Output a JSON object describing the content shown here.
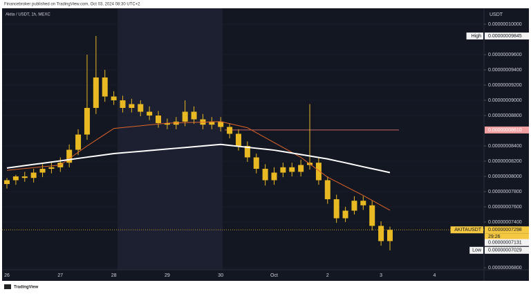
{
  "header": "Financebroker published on TradingView.com, Oct 03, 2024 08:30 UTC+2",
  "footer": "TradingView",
  "chart_data": {
    "type": "candlestick",
    "title": "Akita / USDT, 1h, MEXC",
    "y_axis_label": "USDT",
    "candle_color": "#e8b923",
    "categories": [
      "26",
      null,
      null,
      null,
      null,
      null,
      "27",
      null,
      null,
      null,
      null,
      null,
      "28",
      null,
      null,
      null,
      null,
      null,
      "29",
      null,
      null,
      null,
      null,
      null,
      "30",
      null,
      null,
      null,
      null,
      null,
      "Oct",
      null,
      null,
      null,
      null,
      null,
      "2",
      null,
      null,
      null,
      null,
      null,
      "3",
      null,
      null,
      null,
      null,
      null,
      "4",
      null,
      null,
      null,
      null,
      null
    ],
    "open": [
      7.9e-08,
      7.95e-08,
      8e-08,
      7.98e-08,
      8.05e-08,
      8.1e-08,
      8.12e-08,
      8.18e-08,
      8.35e-08,
      8.55e-08,
      8.9e-08,
      9.3e-08,
      9.05e-08,
      9e-08,
      8.9e-08,
      8.95e-08,
      8.85e-08,
      8.8e-08,
      8.7e-08,
      8.68e-08,
      8.72e-08,
      8.85e-08,
      8.75e-08,
      8.68e-08,
      8.72e-08,
      8.65e-08,
      8.56e-08,
      8.4e-08,
      8.25e-08,
      8.1e-08,
      7.95e-08,
      8.05e-08,
      8.12e-08,
      8.06e-08,
      8.15e-08,
      8.18e-08,
      7.95e-08,
      7.7e-08,
      7.45e-08,
      7.55e-08,
      7.68e-08,
      7.62e-08,
      7.35e-08,
      7.15e-08,
      null,
      null,
      null,
      null,
      null,
      null,
      null,
      null,
      null,
      null
    ],
    "high": [
      7.98e-08,
      8.02e-08,
      8.06e-08,
      8.1e-08,
      8.16e-08,
      8.18e-08,
      8.25e-08,
      8.42e-08,
      8.62e-08,
      9.6e-08,
      9.845e-08,
      9.4e-08,
      9.12e-08,
      9.06e-08,
      9.02e-08,
      9e-08,
      8.92e-08,
      8.86e-08,
      8.76e-08,
      8.78e-08,
      9e-08,
      8.92e-08,
      8.82e-08,
      8.78e-08,
      8.78e-08,
      8.7e-08,
      8.62e-08,
      8.46e-08,
      8.3e-08,
      8.16e-08,
      8.12e-08,
      8.18e-08,
      8.18e-08,
      8.22e-08,
      8.95e-08,
      8.24e-08,
      8e-08,
      7.76e-08,
      7.6e-08,
      7.74e-08,
      7.74e-08,
      7.68e-08,
      7.41e-08,
      7.34e-08,
      null,
      null,
      null,
      null,
      null,
      null,
      null,
      null,
      null,
      null
    ],
    "low": [
      7.84e-08,
      7.89e-08,
      7.93e-08,
      7.92e-08,
      7.99e-08,
      8.04e-08,
      8.06e-08,
      8.12e-08,
      8.28e-08,
      8.48e-08,
      8.82e-08,
      8.98e-08,
      8.94e-08,
      8.84e-08,
      8.84e-08,
      8.79e-08,
      8.74e-08,
      8.64e-08,
      8.62e-08,
      8.62e-08,
      8.66e-08,
      8.69e-08,
      8.62e-08,
      8.62e-08,
      8.59e-08,
      8.5e-08,
      8.34e-08,
      8.19e-08,
      8.04e-08,
      7.88e-08,
      7.89e-08,
      7.99e-08,
      8e-08,
      8e-08,
      8.09e-08,
      7.89e-08,
      7.64e-08,
      7.39e-08,
      7.4e-08,
      7.5e-08,
      7.56e-08,
      7.29e-08,
      7.09e-08,
      7.029e-08,
      null,
      null,
      null,
      null,
      null,
      null,
      null,
      null,
      null,
      null
    ],
    "close": [
      7.95e-08,
      8e-08,
      7.98e-08,
      8.05e-08,
      8.1e-08,
      8.12e-08,
      8.18e-08,
      8.35e-08,
      8.55e-08,
      8.9e-08,
      9.3e-08,
      9.05e-08,
      9e-08,
      8.9e-08,
      8.95e-08,
      8.85e-08,
      8.8e-08,
      8.7e-08,
      8.68e-08,
      8.72e-08,
      8.85e-08,
      8.75e-08,
      8.68e-08,
      8.72e-08,
      8.65e-08,
      8.56e-08,
      8.4e-08,
      8.25e-08,
      8.1e-08,
      7.95e-08,
      8.05e-08,
      8.12e-08,
      8.06e-08,
      8.15e-08,
      8.18e-08,
      7.95e-08,
      7.7e-08,
      7.45e-08,
      7.55e-08,
      7.68e-08,
      7.62e-08,
      7.35e-08,
      7.15e-08,
      7.298e-08,
      null,
      null,
      null,
      null,
      null,
      null,
      null,
      null,
      null,
      null
    ],
    "series": [
      {
        "color": "#e0642a",
        "values": [
          8.08e-08,
          8.092e-08,
          8.103e-08,
          8.115e-08,
          8.127e-08,
          8.138e-08,
          8.15e-08,
          8.233e-08,
          8.317e-08,
          8.4e-08,
          8.477e-08,
          8.553e-08,
          8.63e-08,
          8.642e-08,
          8.653e-08,
          8.665e-08,
          8.677e-08,
          8.688e-08,
          8.7e-08,
          8.703e-08,
          8.707e-08,
          8.71e-08,
          8.713e-08,
          8.717e-08,
          8.72e-08,
          8.693e-08,
          8.667e-08,
          8.64e-08,
          8.575e-08,
          8.51e-08,
          8.445e-08,
          8.38e-08,
          8.315e-08,
          8.25e-08,
          8.163e-08,
          8.077e-08,
          7.99e-08,
          7.93e-08,
          7.87e-08,
          7.81e-08,
          7.75e-08,
          7.685e-08,
          7.62e-08,
          7.555e-08,
          null,
          null,
          null,
          null,
          null,
          null,
          null,
          null,
          null,
          null
        ]
      },
      {
        "color": "#ffffff",
        "values": [
          8.11e-08,
          8.126e-08,
          8.142e-08,
          8.158e-08,
          8.173e-08,
          8.189e-08,
          8.205e-08,
          8.221e-08,
          8.237e-08,
          8.253e-08,
          8.268e-08,
          8.284e-08,
          8.3e-08,
          8.31e-08,
          8.32e-08,
          8.33e-08,
          8.34e-08,
          8.35e-08,
          8.36e-08,
          8.37e-08,
          8.38e-08,
          8.39e-08,
          8.4e-08,
          8.41e-08,
          8.42e-08,
          8.408e-08,
          8.395e-08,
          8.383e-08,
          8.37e-08,
          8.358e-08,
          8.345e-08,
          8.326e-08,
          8.307e-08,
          8.288e-08,
          8.268e-08,
          8.249e-08,
          8.23e-08,
          8.204e-08,
          8.179e-08,
          8.153e-08,
          8.127e-08,
          8.101e-08,
          8.076e-08,
          8.05e-08,
          null,
          null,
          null,
          null,
          null,
          null,
          null,
          null,
          null,
          null
        ]
      }
    ],
    "ylim": [
      6.773e-08,
      1.0209e-07
    ],
    "yticks": [
      {
        "value": 1e-07,
        "label": "0.00000010000"
      },
      {
        "value": 9.6e-08,
        "label": "0.00000009600"
      },
      {
        "value": 9.4e-08,
        "label": "0.00000009400"
      },
      {
        "value": 9.2e-08,
        "label": "0.00000009200"
      },
      {
        "value": 9e-08,
        "label": "0.00000009000"
      },
      {
        "value": 8.8e-08,
        "label": "0.00000008800"
      },
      {
        "value": 8.4e-08,
        "label": "0.00000008400"
      },
      {
        "value": 8.2e-08,
        "label": "0.00000008200"
      },
      {
        "value": 8e-08,
        "label": "0.00000008000"
      },
      {
        "value": 7.8e-08,
        "label": "0.00000007800"
      },
      {
        "value": 7.6e-08,
        "label": "0.00000007600"
      },
      {
        "value": 7.4e-08,
        "label": "0.00000007400"
      },
      {
        "value": 6.8e-08,
        "label": "0.00000006800"
      }
    ],
    "price_labels": [
      {
        "name": "High",
        "value": 9.845e-08,
        "value_label": "0.00000009845",
        "color": "#f2f2f2"
      },
      {
        "value": 8.61e-08,
        "value_label": "0.00000008610",
        "color": "#f0a0a0"
      },
      {
        "name": "AKITAUSDT",
        "value": 7.298e-08,
        "value_label": "0.00000007298",
        "countdown": "29:26",
        "color": "#f5c842"
      },
      {
        "value": 7.131e-08,
        "value_label": "0.00000007131",
        "color": "#f2f2f2"
      },
      {
        "name": "Low",
        "value": 7.029e-08,
        "value_label": "0.00000007029",
        "color": "#f2f2f2"
      }
    ]
  }
}
